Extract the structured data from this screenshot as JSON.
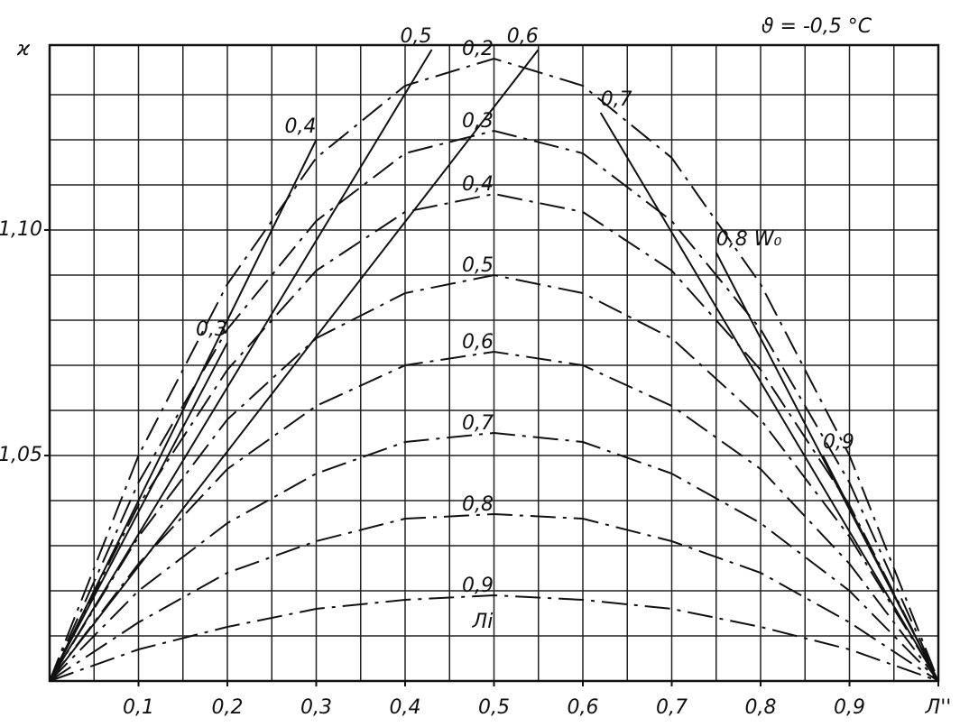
{
  "chart_data": {
    "type": "line",
    "title": "ϑ = -0,5 °C",
    "y_label": "ϰ",
    "annotation": "Лi",
    "x": [
      0,
      0.1,
      0.2,
      0.3,
      0.4,
      0.5,
      0.6,
      0.7,
      0.8,
      0.9,
      1
    ],
    "xlim": [
      0,
      1
    ],
    "ylim": [
      1.0,
      1.141
    ],
    "xticks": [
      {
        "value": 0.1,
        "label": "0,1"
      },
      {
        "value": 0.2,
        "label": "0,2"
      },
      {
        "value": 0.3,
        "label": "0,3"
      },
      {
        "value": 0.4,
        "label": "0,4"
      },
      {
        "value": 0.5,
        "label": "0,5"
      },
      {
        "value": 0.6,
        "label": "0,6"
      },
      {
        "value": 0.7,
        "label": "0,7"
      },
      {
        "value": 0.8,
        "label": "0,8"
      },
      {
        "value": 0.9,
        "label": "0,9"
      },
      {
        "value": 1,
        "label": "Л''"
      }
    ],
    "yticks": [
      {
        "value": 1.05,
        "label": "1,05"
      },
      {
        "value": 1.1,
        "label": "1,10"
      }
    ],
    "xgrid": [
      0.05,
      0.1,
      0.15,
      0.2,
      0.25,
      0.3,
      0.35,
      0.4,
      0.45,
      0.5,
      0.55,
      0.6,
      0.65,
      0.7,
      0.75,
      0.8,
      0.85,
      0.9,
      0.95
    ],
    "ygrid": [
      1.01,
      1.02,
      1.03,
      1.04,
      1.05,
      1.06,
      1.07,
      1.08,
      1.09,
      1.1,
      1.11,
      1.12,
      1.13
    ],
    "grid": true,
    "color": "#111111",
    "series": [
      {
        "name": "0,2",
        "style": "dashdot",
        "values": [
          1,
          1.05,
          1.088,
          1.116,
          1.132,
          1.138,
          1.132,
          1.116,
          1.088,
          1.05,
          1
        ]
      },
      {
        "name": "0,3",
        "style": "dashdot",
        "values": [
          1,
          1.044,
          1.078,
          1.102,
          1.117,
          1.122,
          1.117,
          1.102,
          1.078,
          1.044,
          1
        ]
      },
      {
        "name": "0,4",
        "style": "dashdot",
        "values": [
          1,
          1.039,
          1.069,
          1.091,
          1.104,
          1.108,
          1.104,
          1.091,
          1.069,
          1.039,
          1
        ]
      },
      {
        "name": "0,5",
        "style": "dashdot",
        "values": [
          1,
          1.032,
          1.058,
          1.076,
          1.086,
          1.09,
          1.086,
          1.076,
          1.058,
          1.032,
          1
        ]
      },
      {
        "name": "0,6",
        "style": "dashdot",
        "values": [
          1,
          1.026,
          1.047,
          1.061,
          1.07,
          1.073,
          1.07,
          1.061,
          1.047,
          1.026,
          1
        ]
      },
      {
        "name": "0,7",
        "style": "dashdot",
        "values": [
          1,
          1.02,
          1.035,
          1.046,
          1.053,
          1.055,
          1.053,
          1.046,
          1.035,
          1.02,
          1
        ]
      },
      {
        "name": "0,8",
        "style": "dashdot",
        "values": [
          1,
          1.013,
          1.024,
          1.031,
          1.036,
          1.037,
          1.036,
          1.031,
          1.024,
          1.013,
          1
        ]
      },
      {
        "name": "0,9",
        "style": "dashdot",
        "values": [
          1,
          1.007,
          1.012,
          1.016,
          1.018,
          1.019,
          1.018,
          1.016,
          1.012,
          1.007,
          1
        ]
      },
      {
        "name": "0,3",
        "style": "solid",
        "x": [
          0,
          0.2
        ],
        "values": [
          1,
          1.075
        ]
      },
      {
        "name": "0,4",
        "style": "solid",
        "x": [
          0,
          0.3
        ],
        "values": [
          1,
          1.12
        ]
      },
      {
        "name": "0,5",
        "style": "solid",
        "x": [
          0,
          0.43
        ],
        "values": [
          1,
          1.14
        ]
      },
      {
        "name": "0,6",
        "style": "solid",
        "x": [
          0,
          0.55
        ],
        "values": [
          1,
          1.14
        ]
      },
      {
        "name": "0,7",
        "style": "solid",
        "x": [
          1,
          0.62
        ],
        "values": [
          1,
          1.126
        ]
      },
      {
        "name": "0,8 W₀",
        "style": "solid",
        "x": [
          1,
          0.75
        ],
        "values": [
          1,
          1.095
        ]
      },
      {
        "name": "0,9",
        "style": "solid",
        "x": [
          1,
          0.87
        ],
        "values": [
          1,
          1.05
        ]
      }
    ]
  }
}
